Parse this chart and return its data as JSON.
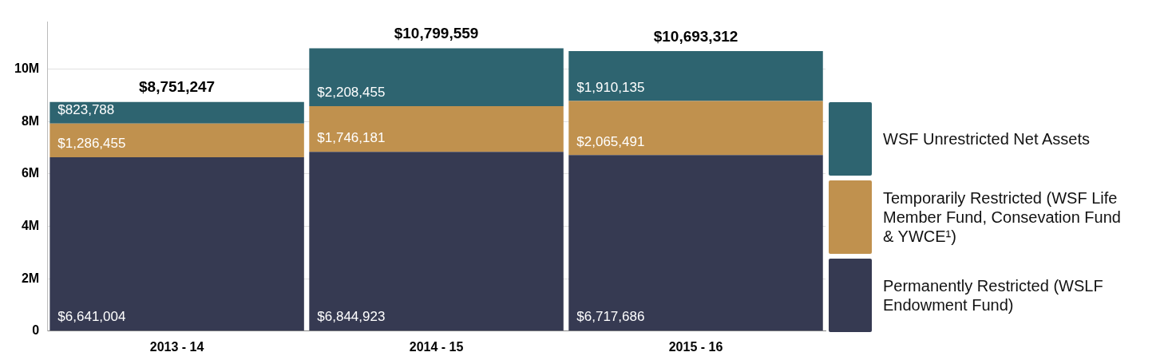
{
  "chart_data": {
    "type": "bar",
    "stacked": true,
    "categories": [
      "2013 - 14",
      "2014 - 15",
      "2015 - 16"
    ],
    "series": [
      {
        "name": "Permanently Restricted (WSLF Endowment Fund)",
        "color": "#363a52",
        "values": [
          6641004,
          6844923,
          6717686
        ],
        "value_labels": [
          "$6,641,004",
          "$6,844,923",
          "$6,717,686"
        ]
      },
      {
        "name": "Temporarily Restricted (WSF Life Member Fund, Consevation Fund & YWCE¹)",
        "color": "#c0914e",
        "values": [
          1286455,
          1746181,
          2065491
        ],
        "value_labels": [
          "$1,286,455",
          "$1,746,181",
          "$2,065,491"
        ]
      },
      {
        "name": "WSF Unrestricted Net Assets",
        "color": "#2e6470",
        "values": [
          823788,
          2208455,
          1910135
        ],
        "value_labels": [
          "$823,788",
          "$2,208,455",
          "$1,910,135"
        ]
      }
    ],
    "totals": [
      "$8,751,247",
      "$10,799,559",
      "$10,693,312"
    ],
    "ylim": [
      0,
      11800000
    ],
    "yticks": [
      0,
      {
        "value": 2000000,
        "label": "2M"
      },
      {
        "value": 4000000,
        "label": "4M"
      },
      {
        "value": 6000000,
        "label": "6M"
      },
      {
        "value": 8000000,
        "label": "8M"
      },
      {
        "value": 10000000,
        "label": "10M"
      }
    ],
    "grid": "y",
    "legend": "right"
  }
}
